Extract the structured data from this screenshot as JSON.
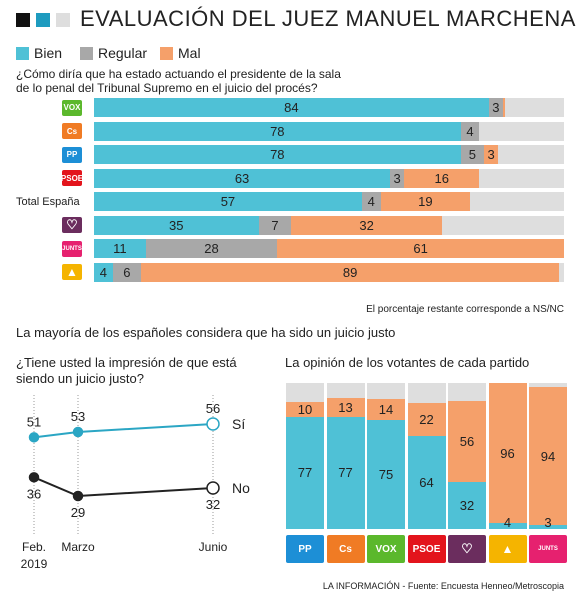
{
  "title": "EVALUACIÓN DEL JUEZ MANUEL MARCHENA",
  "colors": {
    "bien": "#4fc1d6",
    "regular": "#a8a8a8",
    "mal": "#f5a06a",
    "ns": "#dedede",
    "line_si": "#2ba6c4",
    "line_no": "#222222"
  },
  "legend": {
    "bien": "Bien",
    "regular": "Regular",
    "mal": "Mal"
  },
  "question1": "¿Cómo diría que ha estado actuando el presidente de la sala de lo penal del Tribunal Supremo en el juicio del procés?",
  "footnote": "El porcentaje restante corresponde a NS/NC",
  "subheading": "La mayoría de los españoles considera que ha sido un juicio justo",
  "question2": "¿Tiene usted la impresión de que está siendo un juicio justo?",
  "question3": "La opinión de los votantes de cada partido",
  "source": "LA INFORMACIÓN - Fuente: Encuesta Henneo/Metroscopia",
  "party_logos": {
    "vox": {
      "icon": "vox-logo",
      "text": "VOX",
      "color": "#5bb82c"
    },
    "cs": {
      "icon": "ciudadanos-logo",
      "text": "Cs",
      "color": "#f07b24"
    },
    "pp": {
      "icon": "pp-logo",
      "text": "PP",
      "color": "#1d8fd6"
    },
    "psoe": {
      "icon": "psoe-logo",
      "text": "PSOE",
      "color": "#e3141c"
    },
    "up": {
      "icon": "unidas-podemos-heart-logo",
      "text": "",
      "color": "#6b2d5e"
    },
    "jxcat": {
      "icon": "junts-per-catalunya-logo",
      "text": "",
      "color": "#e6216f"
    },
    "erc": {
      "icon": "erc-logo",
      "text": "",
      "color": "#f5b400"
    }
  },
  "chart_data": [
    {
      "type": "bar",
      "orientation": "horizontal",
      "stacked": true,
      "categories": [
        "vox",
        "cs",
        "pp",
        "psoe",
        "Total España",
        "up",
        "jxcat",
        "erc"
      ],
      "series": [
        {
          "name": "Bien",
          "values": [
            84,
            78,
            78,
            63,
            57,
            35,
            11,
            4
          ]
        },
        {
          "name": "Regular",
          "values": [
            3,
            4,
            5,
            3,
            4,
            7,
            28,
            6
          ]
        },
        {
          "name": "Mal",
          "values": [
            0.5,
            0,
            3,
            16,
            19,
            32,
            61,
            89
          ]
        }
      ],
      "xlim": [
        0,
        100
      ]
    },
    {
      "type": "line",
      "x": [
        "Feb. 2019",
        "Marzo",
        "Junio"
      ],
      "series": [
        {
          "name": "Sí",
          "values": [
            51,
            53,
            56
          ]
        },
        {
          "name": "No",
          "values": [
            36,
            29,
            32
          ]
        }
      ],
      "ylim": [
        20,
        65
      ]
    },
    {
      "type": "bar",
      "orientation": "vertical",
      "stacked": true,
      "categories": [
        "pp",
        "cs",
        "vox",
        "psoe",
        "up",
        "erc",
        "jxcat"
      ],
      "series": [
        {
          "name": "Bien",
          "values": [
            77,
            77,
            75,
            64,
            32,
            4,
            3
          ]
        },
        {
          "name": "Mal",
          "values": [
            10,
            13,
            14,
            22,
            56,
            96,
            94
          ]
        }
      ],
      "ylim": [
        0,
        100
      ]
    }
  ]
}
